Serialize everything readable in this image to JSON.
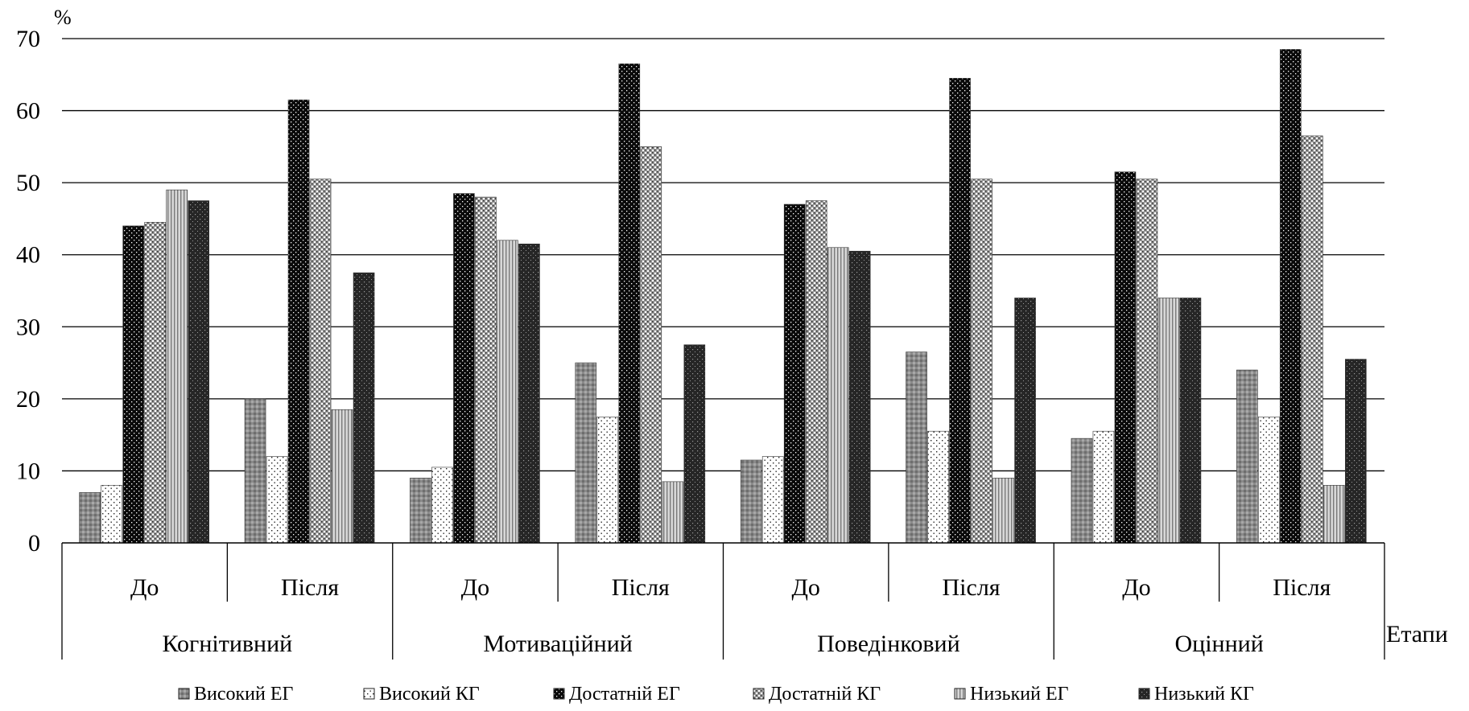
{
  "chart_data": {
    "type": "bar",
    "ylabel": "%",
    "xlabel": "Етапи",
    "ylim": [
      0,
      70
    ],
    "yticks": [
      0,
      10,
      20,
      30,
      40,
      50,
      60,
      70
    ],
    "grid": true,
    "legend_position": "bottom",
    "groups": [
      "Когнітивний",
      "Мотиваційний",
      "Поведінковий",
      "Оцінний"
    ],
    "stages": [
      "До",
      "Після"
    ],
    "categories": [
      "Когнітивний — До",
      "Когнітивний — Після",
      "Мотиваційний — До",
      "Мотиваційний — Після",
      "Поведінковий — До",
      "Поведінковий — Після",
      "Оцінний — До",
      "Оцінний — Після"
    ],
    "series": [
      {
        "name": "Високий ЕГ",
        "color": "#8c8c8c",
        "pattern": "crosshatch-grey",
        "values": [
          7,
          20,
          9,
          25,
          11.5,
          26.5,
          14.5,
          24
        ]
      },
      {
        "name": "Високий КГ",
        "color": "#ffffff",
        "pattern": "sparse-dots",
        "values": [
          8,
          12,
          10.5,
          17.5,
          12,
          15.5,
          15.5,
          17.5
        ]
      },
      {
        "name": "Достатній ЕГ",
        "color": "#111111",
        "pattern": "dense-dark",
        "values": [
          44,
          61.5,
          48.5,
          66.5,
          47,
          64.5,
          51.5,
          68.5
        ]
      },
      {
        "name": "Достатній КГ",
        "color": "#b0b0b0",
        "pattern": "checker-dots",
        "values": [
          44.5,
          50.5,
          48,
          55,
          47.5,
          50.5,
          50.5,
          56.5
        ]
      },
      {
        "name": "Низький ЕГ",
        "color": "#c8c8c8",
        "pattern": "vertical-lines",
        "values": [
          49,
          18.5,
          42,
          8.5,
          41,
          9,
          34,
          8
        ]
      },
      {
        "name": "Низький КГ",
        "color": "#202020",
        "pattern": "dark-dots",
        "values": [
          47.5,
          37.5,
          41.5,
          27.5,
          40.5,
          34,
          34,
          25.5
        ]
      }
    ]
  }
}
